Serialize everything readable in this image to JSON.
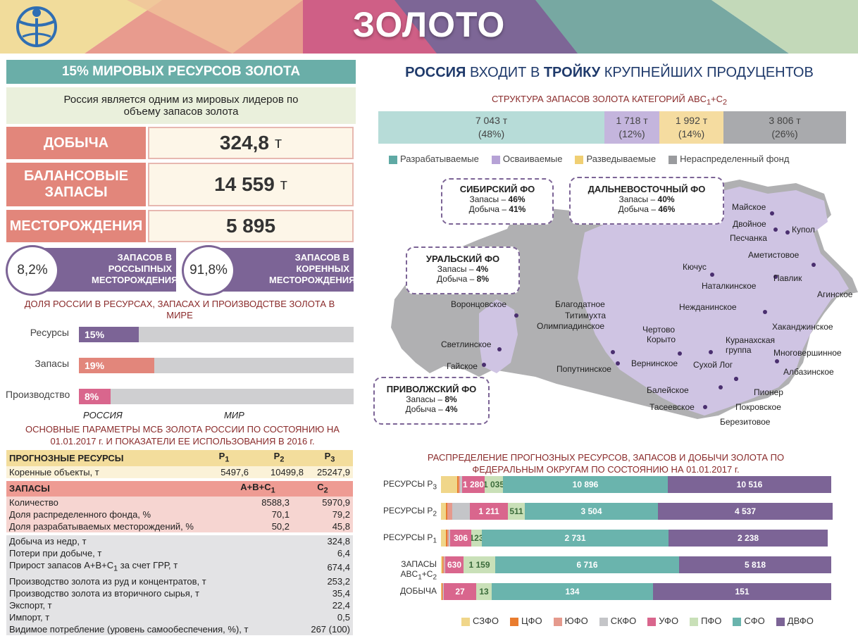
{
  "header": {
    "title": "ЗОЛОТО"
  },
  "left": {
    "band_title": "15% МИРОВЫХ РЕСУРСОВ ЗОЛОТА",
    "intro": "Россия является одним из мировых лидеров по объему запасов золота",
    "stats": [
      {
        "label": "ДОБЫЧА",
        "value": "324,8",
        "unit": "т"
      },
      {
        "label": "БАЛАНСОВЫЕ ЗАПАСЫ",
        "value": "14 559",
        "unit": "т"
      },
      {
        "label": "МЕСТОРОЖДЕНИЯ",
        "value": "5 895",
        "unit": ""
      }
    ],
    "placers": {
      "percent": "8,2%",
      "text": "ЗАПАСОВ В РОССЫПНЫХ МЕСТОРОЖДЕНИЯХ"
    },
    "lode": {
      "percent": "91,8%",
      "text": "ЗАПАСОВ В КОРЕННЫХ МЕСТОРОЖДЕНИЯХ"
    },
    "share_title": "ДОЛЯ РОССИИ В РЕСУРСАХ, ЗАПАСАХ И ПРОИЗВОДСТВЕ ЗОЛОТА В МИРЕ",
    "share_bars": [
      {
        "label": "Ресурсы",
        "value": "15%",
        "fraction": 0.15,
        "color": "#7c6496"
      },
      {
        "label": "Запасы",
        "value": "19%",
        "fraction": 0.19,
        "color": "#e2867b"
      },
      {
        "label": "Производство",
        "value": "8%",
        "fraction": 0.08,
        "color": "#d9668d"
      }
    ],
    "share_axis": {
      "left": "РОССИЯ",
      "right": "МИР"
    },
    "params_title": "ОСНОВНЫЕ ПАРАМЕТРЫ МСБ ЗОЛОТА РОССИИ ПО СОСТОЯНИЮ НА 01.01.2017 г. И ПОКАЗАТЕЛИ ЕЕ ИСПОЛЬЗОВАНИЯ В 2016 г."
  },
  "params": {
    "res_header": {
      "label": "ПРОГНОЗНЫЕ РЕСУРСЫ",
      "c1": "P",
      "c1_sub": "1",
      "c2": "P",
      "c2_sub": "2",
      "c3": "P",
      "c3_sub": "3"
    },
    "res_row": {
      "label": "Коренные объекты, т",
      "c1": "5497,6",
      "c2": "10499,8",
      "c3": "25247,9"
    },
    "res_header_alt": {
      "label": "ЗАПАСЫ",
      "c1": "A+B+C",
      "c1_sub": "1",
      "c2": "C",
      "c2_sub": "2"
    },
    "res_rows": [
      {
        "label": "Количество",
        "c1": "8588,3",
        "c2": "5970,9"
      },
      {
        "label": "Доля распределенного фонда, %",
        "c1": "70,1",
        "c2": "79,2"
      },
      {
        "label": "Доля разрабатываемых месторождений, %",
        "c1": "50,2",
        "c2": "45,8"
      }
    ],
    "other_rows": [
      {
        "label": "Добыча из недр, т",
        "value": "324,8"
      },
      {
        "label": "Потери при добыче, т",
        "value": "6,4"
      },
      {
        "label": "Прирост запасов A+B+C",
        "label_sub": "1",
        "label_tail": " за счет ГРР, т",
        "value": "674,4"
      },
      {
        "label": "Производство золота из руд и концентратов, т",
        "value": "253,2"
      },
      {
        "label": "Производство золота из вторичного сырья, т",
        "value": "35,4"
      },
      {
        "label": "Экспорт, т",
        "value": "22,4"
      },
      {
        "label": "Импорт, т",
        "value": "0,5"
      },
      {
        "label": "Видимое потребление (уровень самообеспечения, %), т",
        "value": "267 (100)"
      }
    ]
  },
  "right": {
    "headline_b1": "РОССИЯ",
    "headline_t1": " ВХОДИТ В ",
    "headline_b2": "ТРОЙКУ",
    "headline_t2": " КРУПНЕЙШИХ ПРОДУЦЕНТОВ",
    "structure_title": "СТРУКТУРА ЗАПАСОВ ЗОЛОТА КАТЕГОРИЙ ABC",
    "structure_title_sub1": "1",
    "structure_title_mid": "+C",
    "structure_title_sub2": "2",
    "structure": [
      {
        "value": "7 043 т",
        "pct": "(48%)",
        "tonnes": 7043,
        "color": "#b7dcd8"
      },
      {
        "value": "1 718 т",
        "pct": "(12%)",
        "tonnes": 1718,
        "color": "#c4b5dd"
      },
      {
        "value": "1 992 т",
        "pct": "(14%)",
        "tonnes": 1992,
        "color": "#f5dca0"
      },
      {
        "value": "3 806 т",
        "pct": "(26%)",
        "tonnes": 3806,
        "color": "#a9aaad"
      }
    ],
    "structure_legend": [
      {
        "label": "Разрабатываемые",
        "color": "#5fa9a4"
      },
      {
        "label": "Осваиваемые",
        "color": "#b6a2d6"
      },
      {
        "label": "Разведываемые",
        "color": "#f0cf73"
      },
      {
        "label": "Нераспределенный фонд",
        "color": "#9a9b9e"
      }
    ]
  },
  "map": {
    "fo": [
      {
        "name": "СИБИРСКИЙ ФО",
        "line1_label": "Запасы – ",
        "line1_value": "46%",
        "line2_label": "Добыча – ",
        "line2_value": "41%"
      },
      {
        "name": "ДАЛЬНЕВОСТОЧНЫЙ ФО",
        "line1_label": "Запасы – ",
        "line1_value": "40%",
        "line2_label": "Добыча – ",
        "line2_value": "46%"
      },
      {
        "name": "УРАЛЬСКИЙ ФО",
        "line1_label": "Запасы – ",
        "line1_value": "4%",
        "line2_label": "Добыча – ",
        "line2_value": "8%"
      },
      {
        "name": "ПРИВОЛЖСКИЙ ФО",
        "line1_label": "Запасы – ",
        "line1_value": "8%",
        "line2_label": "Добыча – ",
        "line2_value": "4%"
      }
    ],
    "cities": [
      "Майское",
      "Двойное",
      "Купол",
      "Песчанка",
      "Аметистовое",
      "Кючус",
      "Павлик",
      "Наталкинское",
      "Агинское",
      "Нежданинское",
      "Хаканджинское",
      "Благодатное",
      "Титимухта",
      "Олимпиадинское",
      "Воронцовское",
      "Чертово",
      "Корыто",
      "Куранахская",
      "группа",
      "Многовершинное",
      "Светлинское",
      "Сухой Лог",
      "Вернинское",
      "Албазинское",
      "Гайское",
      "Попутнинское",
      "Балейское",
      "Пионер",
      "Тасеевское",
      "Покровское",
      "Березитовое"
    ]
  },
  "distribution": {
    "title": "РАСПРЕДЕЛЕНИЕ ПРОГНОЗНЫХ РЕСУРСОВ, ЗАПАСОВ И ДОБЫЧИ ЗОЛОТА ПО ФЕДЕРАЛЬНЫМ ОКРУГАМ ПО СОСТОЯНИЮ НА 01.01.2017 г.",
    "legend": [
      {
        "label": "СЗФО",
        "color": "#f0d68a"
      },
      {
        "label": "ЦФО",
        "color": "#e97c2e"
      },
      {
        "label": "ЮФО",
        "color": "#e59a8d"
      },
      {
        "label": "СКФО",
        "color": "#c4c5c8"
      },
      {
        "label": "УФО",
        "color": "#d9668d"
      },
      {
        "label": "ПФО",
        "color": "#c9e0b8"
      },
      {
        "label": "СФО",
        "color": "#6ab4ad"
      },
      {
        "label": "ДВФО",
        "color": "#7c6496"
      }
    ],
    "rows": [
      {
        "label": "РЕСУРСЫ P",
        "label_sub": "3",
        "segments": [
          {
            "w": 0.042,
            "color": "#f0d68a",
            "text": ""
          },
          {
            "w": 0.004,
            "color": "#e97c2e",
            "text": ""
          },
          {
            "w": 0.004,
            "color": "#e59a8d",
            "text": ""
          },
          {
            "w": 0.006,
            "color": "#c4c5c8",
            "text": ""
          },
          {
            "w": 0.058,
            "color": "#d9668d",
            "text": "1 280"
          },
          {
            "w": 0.047,
            "color": "#c9e0b8",
            "text": "1 035"
          },
          {
            "w": 0.421,
            "color": "#6ab4ad",
            "text": "10 896"
          },
          {
            "w": 0.418,
            "color": "#7c6496",
            "text": "10 516"
          }
        ]
      },
      {
        "label": "РЕСУРСЫ P",
        "label_sub": "2",
        "segments": [
          {
            "w": 0.012,
            "color": "#f0d68a",
            "text": ""
          },
          {
            "w": 0.004,
            "color": "#e97c2e",
            "text": ""
          },
          {
            "w": 0.012,
            "color": "#e59a8d",
            "text": ""
          },
          {
            "w": 0.045,
            "color": "#c4c5c8",
            "text": ""
          },
          {
            "w": 0.097,
            "color": "#d9668d",
            "text": "1 211"
          },
          {
            "w": 0.043,
            "color": "#c9e0b8",
            "text": "511"
          },
          {
            "w": 0.34,
            "color": "#6ab4ad",
            "text": "3 504"
          },
          {
            "w": 0.447,
            "color": "#7c6496",
            "text": "4 537"
          }
        ]
      },
      {
        "label": "РЕСУРСЫ P",
        "label_sub": "1",
        "segments": [
          {
            "w": 0.012,
            "color": "#f0d68a",
            "text": ""
          },
          {
            "w": 0.004,
            "color": "#e97c2e",
            "text": ""
          },
          {
            "w": 0.004,
            "color": "#e59a8d",
            "text": ""
          },
          {
            "w": 0.004,
            "color": "#c4c5c8",
            "text": ""
          },
          {
            "w": 0.054,
            "color": "#d9668d",
            "text": "306"
          },
          {
            "w": 0.027,
            "color": "#c9e0b8",
            "text": "123"
          },
          {
            "w": 0.477,
            "color": "#6ab4ad",
            "text": "2 731"
          },
          {
            "w": 0.408,
            "color": "#7c6496",
            "text": "2 238"
          }
        ]
      },
      {
        "label": "ЗАПАСЫ ABC",
        "label_sub": "1",
        "label_tail": "+C",
        "label_sub2": "2",
        "segments": [
          {
            "w": 0.004,
            "color": "#f0d68a",
            "text": ""
          },
          {
            "w": 0.002,
            "color": "#e97c2e",
            "text": ""
          },
          {
            "w": 0.004,
            "color": "#e59a8d",
            "text": ""
          },
          {
            "w": 0.002,
            "color": "#c4c5c8",
            "text": ""
          },
          {
            "w": 0.047,
            "color": "#d9668d",
            "text": "630"
          },
          {
            "w": 0.081,
            "color": "#c9e0b8",
            "text": "1 159"
          },
          {
            "w": 0.47,
            "color": "#6ab4ad",
            "text": "6 716"
          },
          {
            "w": 0.39,
            "color": "#7c6496",
            "text": "5 818"
          }
        ]
      },
      {
        "label": "ДОБЫЧА",
        "segments": [
          {
            "w": 0.002,
            "color": "#f0d68a",
            "text": ""
          },
          {
            "w": 0.002,
            "color": "#e97c2e",
            "text": ""
          },
          {
            "w": 0.002,
            "color": "#e59a8d",
            "text": ""
          },
          {
            "w": 0.002,
            "color": "#c4c5c8",
            "text": ""
          },
          {
            "w": 0.083,
            "color": "#d9668d",
            "text": "27"
          },
          {
            "w": 0.04,
            "color": "#c9e0b8",
            "text": "13"
          },
          {
            "w": 0.413,
            "color": "#6ab4ad",
            "text": "134"
          },
          {
            "w": 0.456,
            "color": "#7c6496",
            "text": "151"
          }
        ]
      }
    ]
  }
}
